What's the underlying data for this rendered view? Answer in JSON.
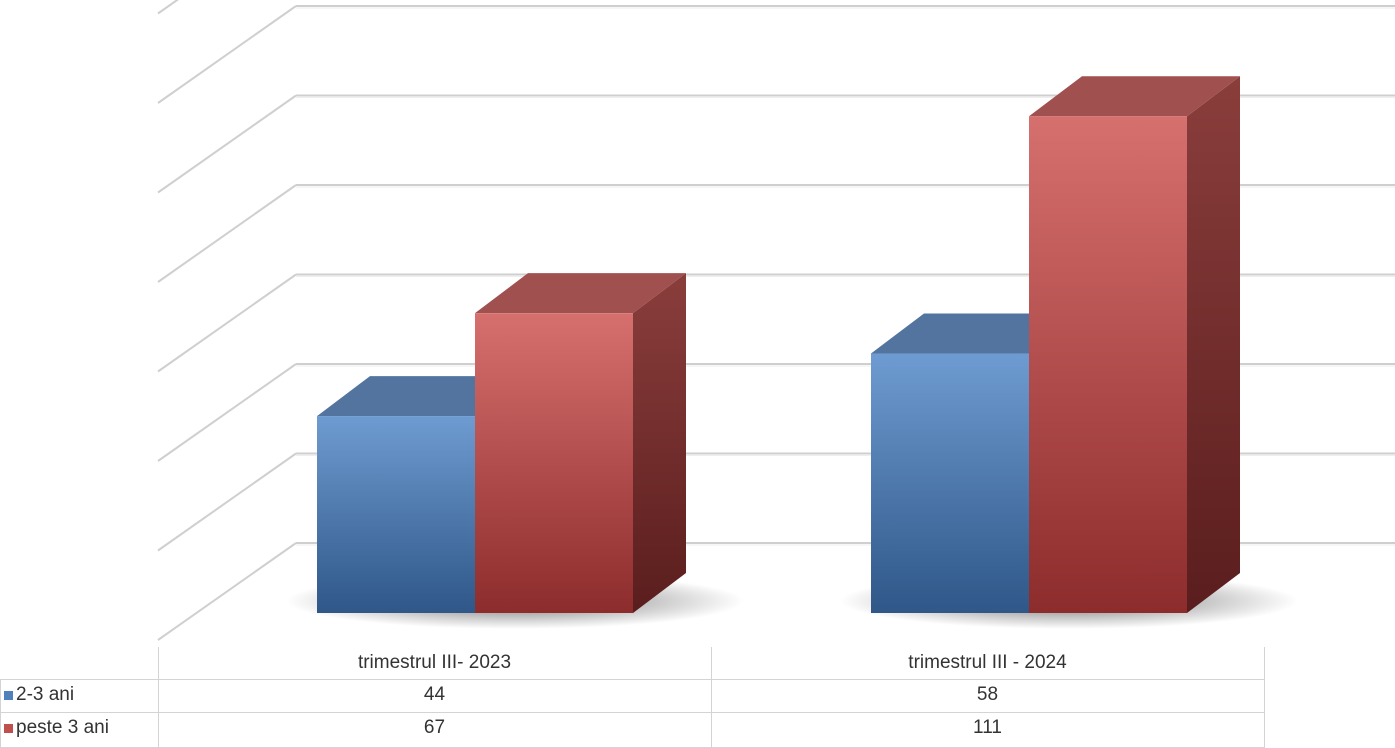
{
  "chart_data": {
    "type": "bar",
    "categories": [
      "trimestrul III- 2023",
      "trimestrul III - 2024"
    ],
    "series": [
      {
        "name": "2-3 ani",
        "values": [
          44,
          58
        ],
        "color": "#4f81bd"
      },
      {
        "name": "peste 3 ani",
        "values": [
          67,
          111
        ],
        "color": "#c0504d"
      }
    ],
    "ylim": [
      0,
      140
    ],
    "grid": true,
    "legend": "data-table",
    "three_d": true
  }
}
